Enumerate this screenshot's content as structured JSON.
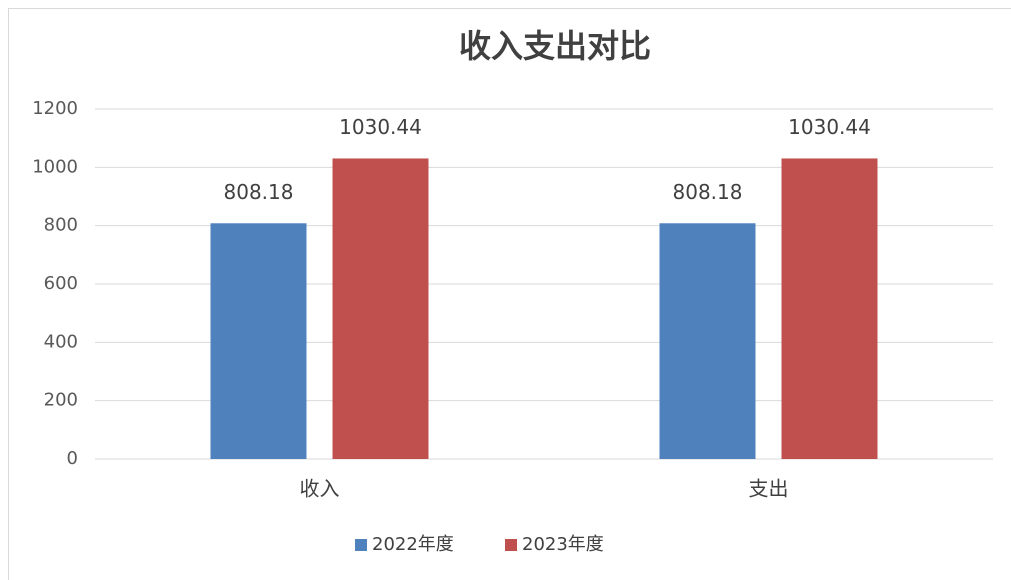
{
  "chart_data": {
    "type": "bar",
    "title": "收入支出对比",
    "categories": [
      "收入",
      "支出"
    ],
    "series": [
      {
        "name": "2022年度",
        "color": "#4f81bd",
        "values": [
          808.18,
          808.18
        ]
      },
      {
        "name": "2023年度",
        "color": "#c0504d",
        "values": [
          1030.44,
          1030.44
        ]
      }
    ],
    "ylim": [
      0,
      1200
    ],
    "yticks": [
      0,
      200,
      400,
      600,
      800,
      1000,
      1200
    ],
    "grid": true,
    "legend": "bottom"
  }
}
